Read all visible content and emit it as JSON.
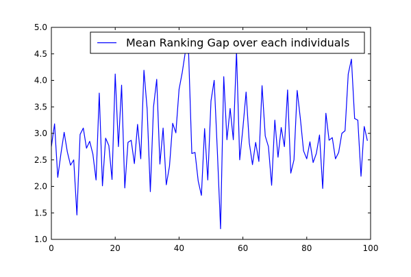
{
  "chart_data": {
    "type": "line",
    "title": "",
    "xlabel": "",
    "ylabel": "",
    "xlim": [
      0,
      100
    ],
    "ylim": [
      1.0,
      5.0
    ],
    "x_ticks": [
      0,
      20,
      40,
      60,
      80,
      100
    ],
    "y_ticks": [
      1.0,
      1.5,
      2.0,
      2.5,
      3.0,
      3.5,
      4.0,
      4.5,
      5.0
    ],
    "x_tick_labels": [
      "0",
      "20",
      "40",
      "60",
      "80",
      "100"
    ],
    "y_tick_labels": [
      "1.0",
      "1.5",
      "2.0",
      "2.5",
      "3.0",
      "3.5",
      "4.0",
      "4.5",
      "5.0"
    ],
    "grid": false,
    "legend": {
      "position": "top-right",
      "entries": [
        "Mean Ranking Gap over each individuals"
      ]
    },
    "series": [
      {
        "name": "Mean Ranking Gap over each individuals",
        "color": "#0000ff",
        "x": [
          0,
          1,
          2,
          3,
          4,
          5,
          6,
          7,
          8,
          9,
          10,
          11,
          12,
          13,
          14,
          15,
          16,
          17,
          18,
          19,
          20,
          21,
          22,
          23,
          24,
          25,
          26,
          27,
          28,
          29,
          30,
          31,
          32,
          33,
          34,
          35,
          36,
          37,
          38,
          39,
          40,
          41,
          42,
          43,
          44,
          45,
          46,
          47,
          48,
          49,
          50,
          51,
          52,
          53,
          54,
          55,
          56,
          57,
          58,
          59,
          60,
          61,
          62,
          63,
          64,
          65,
          66,
          67,
          68,
          69,
          70,
          71,
          72,
          73,
          74,
          75,
          76,
          77,
          78,
          79,
          80,
          81,
          82,
          83,
          84,
          85,
          86,
          87,
          88,
          89,
          90,
          91,
          92,
          93,
          94,
          95,
          96,
          97,
          98,
          99
        ],
        "values": [
          2.75,
          3.18,
          2.17,
          2.62,
          3.02,
          2.65,
          2.4,
          2.5,
          1.46,
          2.98,
          3.1,
          2.72,
          2.85,
          2.61,
          2.12,
          3.76,
          2.01,
          2.91,
          2.77,
          2.13,
          4.12,
          2.75,
          3.91,
          1.97,
          2.83,
          2.87,
          2.43,
          3.17,
          2.52,
          4.19,
          3.46,
          1.9,
          3.5,
          4.02,
          2.42,
          3.1,
          2.03,
          2.38,
          3.19,
          3.01,
          3.83,
          4.15,
          4.55,
          4.5,
          2.62,
          2.64,
          2.1,
          1.83,
          3.09,
          2.12,
          3.61,
          4.0,
          2.66,
          1.2,
          4.07,
          2.88,
          3.47,
          2.88,
          4.55,
          2.5,
          3.1,
          3.78,
          2.82,
          2.41,
          2.83,
          2.47,
          3.9,
          2.95,
          2.75,
          2.02,
          3.25,
          2.55,
          3.11,
          2.75,
          3.82,
          2.25,
          2.5,
          3.81,
          3.28,
          2.67,
          2.52,
          2.84,
          2.45,
          2.62,
          2.97,
          1.96,
          3.38,
          2.87,
          2.92,
          2.52,
          2.64,
          3.0,
          3.05,
          4.12,
          4.4,
          3.28,
          3.25,
          2.19,
          3.13,
          2.86
        ]
      }
    ]
  }
}
